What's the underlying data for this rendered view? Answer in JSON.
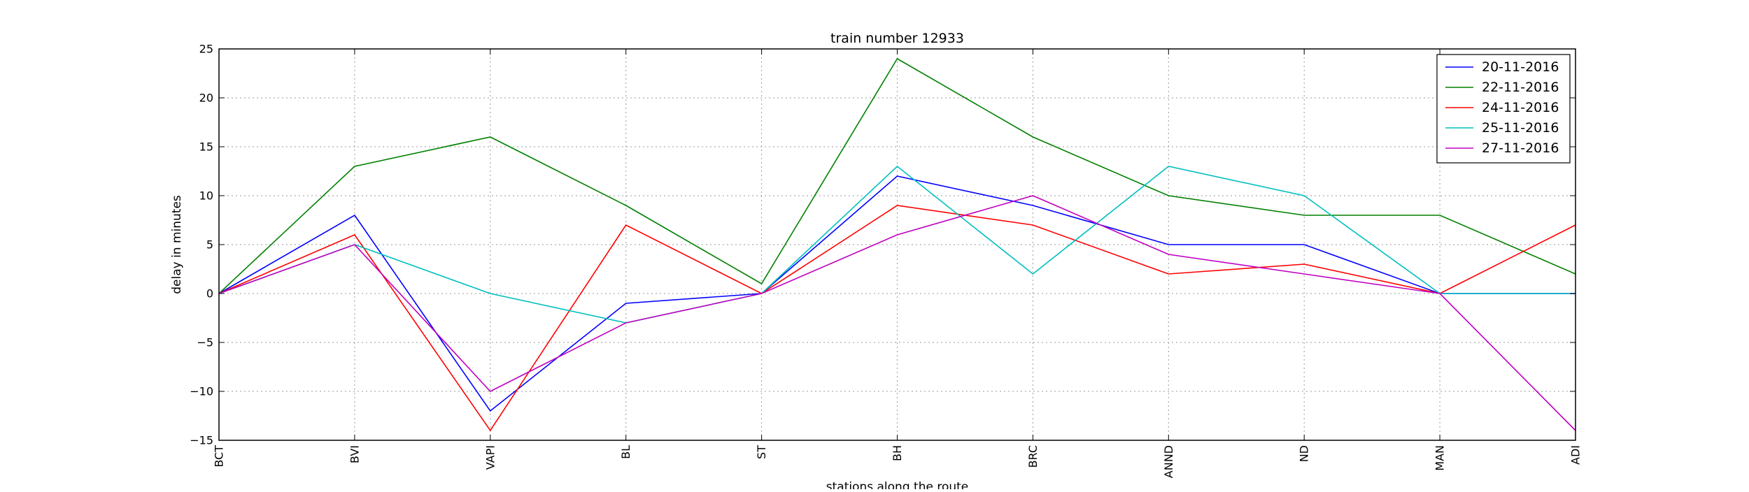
{
  "chart_data": {
    "type": "line",
    "title": "train number 12933",
    "xlabel": "stations along the route",
    "ylabel": "delay in minutes",
    "categories": [
      "BCT",
      "BVI",
      "VAPI",
      "BL",
      "ST",
      "BH",
      "BRC",
      "ANND",
      "ND",
      "MAN",
      "ADI"
    ],
    "ylim": [
      -15,
      25
    ],
    "yticks": [
      -15,
      -10,
      -5,
      0,
      5,
      10,
      15,
      20,
      25
    ],
    "ytick_labels": [
      "−15",
      "−10",
      "−5",
      "0",
      "5",
      "10",
      "15",
      "20",
      "25"
    ],
    "grid": true,
    "legend_position": "top-right",
    "series": [
      {
        "name": "20-11-2016",
        "color": "#0000ff",
        "values": [
          0,
          8,
          -12,
          -1,
          0,
          12,
          9,
          5,
          5,
          0,
          0
        ]
      },
      {
        "name": "22-11-2016",
        "color": "#008000",
        "values": [
          0,
          13,
          16,
          9,
          1,
          24,
          16,
          10,
          8,
          8,
          2
        ]
      },
      {
        "name": "24-11-2016",
        "color": "#ff0000",
        "values": [
          0,
          6,
          -14,
          7,
          0,
          9,
          7,
          2,
          3,
          0,
          7
        ]
      },
      {
        "name": "25-11-2016",
        "color": "#00bfbf",
        "values": [
          0,
          5,
          0,
          -3,
          0,
          13,
          2,
          13,
          10,
          0,
          0
        ]
      },
      {
        "name": "27-11-2016",
        "color": "#bf00bf",
        "values": [
          0,
          5,
          -10,
          -3,
          0,
          6,
          10,
          4,
          2,
          0,
          -14
        ]
      }
    ]
  }
}
